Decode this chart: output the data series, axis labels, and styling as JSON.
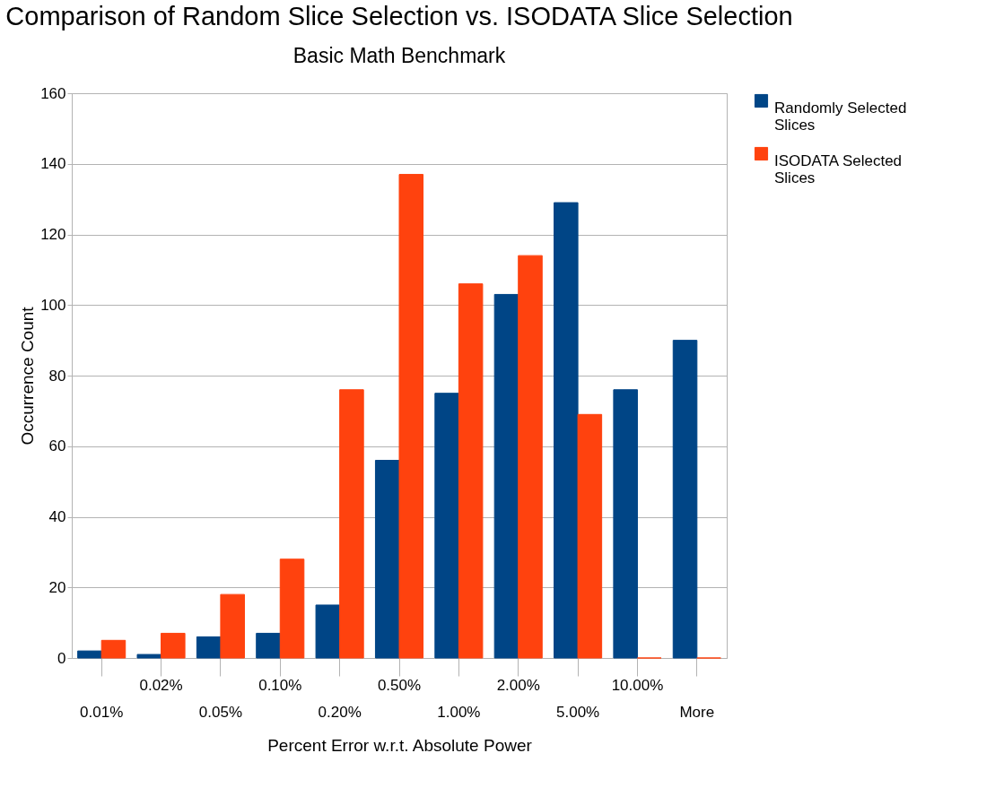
{
  "chart_data": {
    "type": "bar",
    "title": "Comparison of Random Slice Selection vs. ISODATA Slice Selection",
    "subtitle": "Basic Math Benchmark",
    "xlabel": "Percent Error w.r.t. Absolute Power",
    "ylabel": "Occurrence Count",
    "categories": [
      "0.01%",
      "0.02%",
      "0.05%",
      "0.10%",
      "0.20%",
      "0.50%",
      "1.00%",
      "2.00%",
      "5.00%",
      "10.00%",
      "More"
    ],
    "series": [
      {
        "name": "Randomly Selected Slices",
        "color": "#004586",
        "values": [
          2,
          1,
          6,
          7,
          15,
          56,
          75,
          103,
          129,
          76,
          90
        ]
      },
      {
        "name": "ISODATA Selected Slices",
        "color": "#ff420e",
        "values": [
          5,
          7,
          18,
          28,
          76,
          137,
          106,
          114,
          69,
          0,
          0
        ]
      }
    ],
    "ylim": [
      0,
      160
    ],
    "yticks": [
      0,
      20,
      40,
      60,
      80,
      100,
      120,
      140,
      160
    ],
    "grid": "y",
    "legend": "right"
  }
}
